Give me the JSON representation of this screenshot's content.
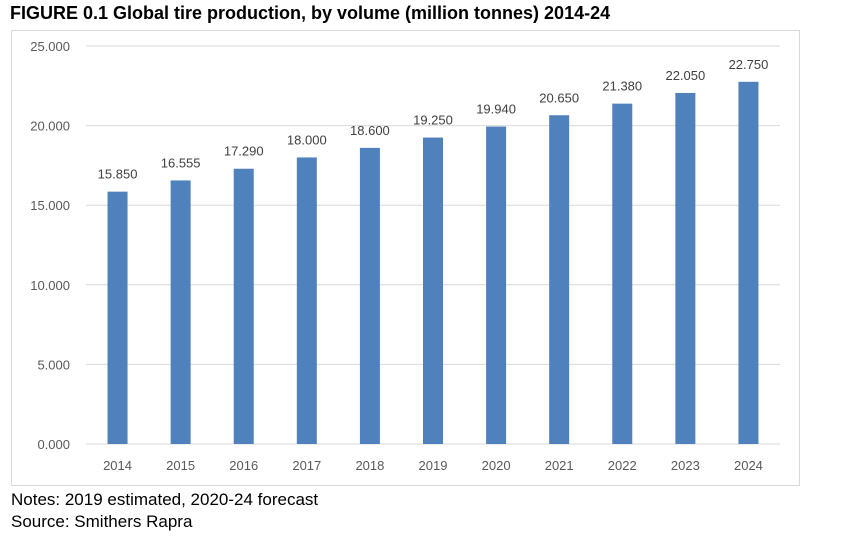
{
  "figure_title": "FIGURE 0.1 Global tire production, by volume (million tonnes) 2014-24",
  "notes": {
    "line1": "Notes: 2019 estimated, 2020-24 forecast",
    "line2": "Source: Smithers Rapra"
  },
  "colors": {
    "bar": "#4f81bd",
    "grid": "#d9d9d9"
  },
  "chart_data": {
    "type": "bar",
    "title": "FIGURE 0.1 Global tire production, by volume (million tonnes) 2014-24",
    "categories": [
      "2014",
      "2015",
      "2016",
      "2017",
      "2018",
      "2019",
      "2020",
      "2021",
      "2022",
      "2023",
      "2024"
    ],
    "values": [
      15.85,
      16.555,
      17.29,
      18.0,
      18.6,
      19.25,
      19.94,
      20.65,
      21.38,
      22.05,
      22.75
    ],
    "value_labels": [
      "15.850",
      "16.555",
      "17.290",
      "18.000",
      "18.600",
      "19.250",
      "19.940",
      "20.650",
      "21.380",
      "22.050",
      "22.750"
    ],
    "y_ticks": [
      0,
      5,
      10,
      15,
      20,
      25
    ],
    "y_tick_labels": [
      "0.000",
      "5.000",
      "10.000",
      "15.000",
      "20.000",
      "25.000"
    ],
    "ylim": [
      0,
      25
    ],
    "grid": true,
    "legend": "none"
  }
}
